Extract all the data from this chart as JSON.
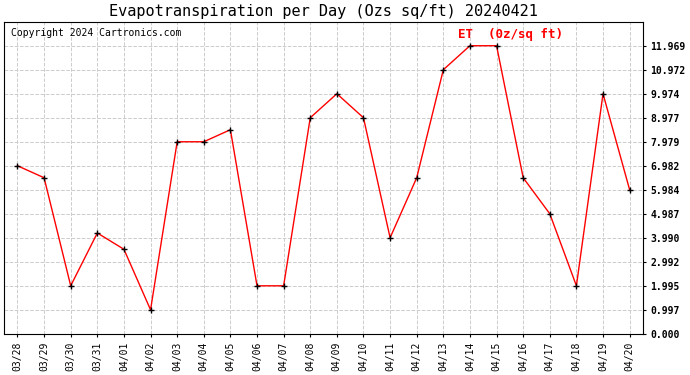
{
  "title": "Evapotranspiration per Day (Ozs sq/ft) 20240421",
  "copyright": "Copyright 2024 Cartronics.com",
  "legend_label": "ET  (0z/sq ft)",
  "dates": [
    "03/28",
    "03/29",
    "03/30",
    "03/31",
    "04/01",
    "04/02",
    "04/03",
    "04/04",
    "04/05",
    "04/06",
    "04/07",
    "04/08",
    "04/09",
    "04/10",
    "04/11",
    "04/12",
    "04/13",
    "04/14",
    "04/15",
    "04/16",
    "04/17",
    "04/18",
    "04/19",
    "04/20"
  ],
  "values": [
    6.982,
    6.484,
    1.995,
    4.189,
    3.512,
    0.997,
    7.979,
    7.979,
    8.48,
    1.995,
    1.995,
    8.977,
    9.974,
    8.977,
    3.99,
    6.484,
    10.972,
    11.969,
    11.969,
    6.484,
    4.987,
    1.995,
    9.974,
    5.984
  ],
  "line_color": "#ff0000",
  "marker_color": "#000000",
  "bg_color": "#ffffff",
  "grid_color": "#cccccc",
  "ylim": [
    0.0,
    12.966
  ],
  "yticks": [
    0.0,
    0.997,
    1.995,
    2.992,
    3.99,
    4.987,
    5.984,
    6.982,
    7.979,
    8.977,
    9.974,
    10.972,
    11.969
  ],
  "ytick_labels": [
    "0.000",
    "0.997",
    "1.995",
    "2.992",
    "3.990",
    "4.987",
    "5.984",
    "6.982",
    "7.979",
    "8.977",
    "9.974",
    "10.972",
    "11.969"
  ],
  "title_fontsize": 11,
  "axis_fontsize": 7,
  "legend_fontsize": 9,
  "copyright_fontsize": 7
}
